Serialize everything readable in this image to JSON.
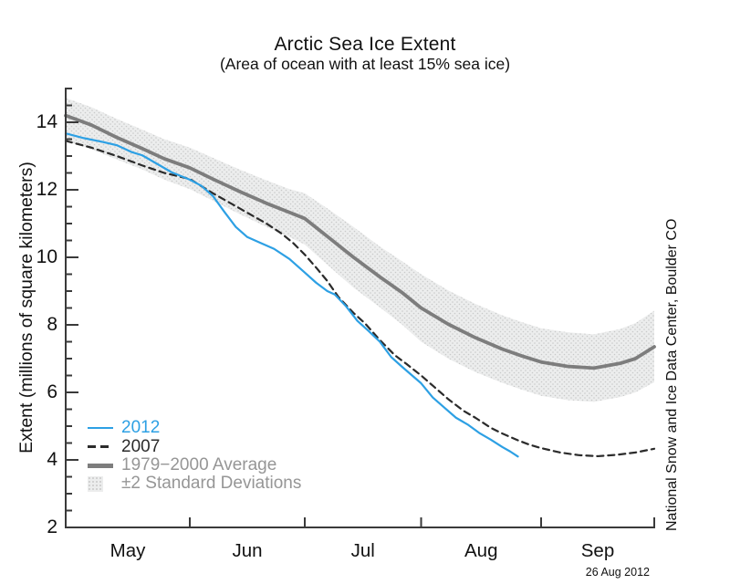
{
  "title": "Arctic Sea Ice Extent",
  "subtitle": "(Area of ocean with at least 15% sea ice)",
  "y_axis_label": "Extent (millions of square kilometers)",
  "watermark": "National Snow and Ice Data Center, Boulder CO",
  "date_label": "26 Aug 2012",
  "colors": {
    "line_2012": "#2da0e4",
    "line_2007": "#2b2b2b",
    "line_avg": "#7d7d7d",
    "band_fill": "#eceded",
    "band_dot": "#c9c9c9",
    "legend_gray": "#969696",
    "axis": "#3a3a3a",
    "text": "#111111"
  },
  "legend": {
    "items": [
      {
        "label": "2012",
        "color": "#2da0e4",
        "swatch": "line-2012"
      },
      {
        "label": "2007",
        "color": "#2b2b2b",
        "swatch": "line-2007"
      },
      {
        "label": "1979−2000 Average",
        "color": "#969696",
        "swatch": "line-avg"
      },
      {
        "label": "±2 Standard Deviations",
        "color": "#969696",
        "swatch": "box-std"
      }
    ]
  },
  "chart_data": {
    "type": "line",
    "title": "Arctic Sea Ice Extent",
    "subtitle": "(Area of ocean with at least 15% sea ice)",
    "xlabel": "",
    "ylabel": "Extent (millions of square kilometers)",
    "x_unit": "days from 28 Apr",
    "x_range_days": [
      0,
      156
    ],
    "ylim": [
      2,
      15
    ],
    "y_major_ticks": [
      2,
      4,
      6,
      8,
      10,
      12,
      14
    ],
    "y_minor_step": 0.5,
    "x_tick_days": [
      34,
      64,
      95,
      126,
      156
    ],
    "x_tick_dates": [
      "Jun 1",
      "Jul 1",
      "Aug 1",
      "Sep 1",
      "Oct 1"
    ],
    "month_labels": [
      "May",
      "Jun",
      "Jul",
      "Aug",
      "Sep"
    ],
    "grid": false,
    "legend_position": "lower-left",
    "band": {
      "name": "±2 Standard Deviations",
      "upper": [
        [
          0,
          14.72
        ],
        [
          7,
          14.45
        ],
        [
          14,
          14.1
        ],
        [
          21,
          13.78
        ],
        [
          27,
          13.5
        ],
        [
          34,
          13.25
        ],
        [
          40,
          12.95
        ],
        [
          47,
          12.6
        ],
        [
          54,
          12.28
        ],
        [
          60,
          12.02
        ],
        [
          64,
          11.9
        ],
        [
          70,
          11.45
        ],
        [
          77,
          10.9
        ],
        [
          84,
          10.32
        ],
        [
          90,
          9.88
        ],
        [
          95,
          9.5
        ],
        [
          102,
          9.02
        ],
        [
          109,
          8.62
        ],
        [
          116,
          8.28
        ],
        [
          121,
          8.08
        ],
        [
          126,
          7.9
        ],
        [
          133,
          7.78
        ],
        [
          140,
          7.72
        ],
        [
          147,
          7.88
        ],
        [
          151,
          8.05
        ],
        [
          156,
          8.42
        ]
      ],
      "lower": [
        [
          0,
          13.45
        ],
        [
          7,
          13.2
        ],
        [
          14,
          12.9
        ],
        [
          21,
          12.6
        ],
        [
          27,
          12.3
        ],
        [
          34,
          12.02
        ],
        [
          40,
          11.68
        ],
        [
          47,
          11.28
        ],
        [
          54,
          10.9
        ],
        [
          60,
          10.6
        ],
        [
          64,
          10.38
        ],
        [
          70,
          9.78
        ],
        [
          77,
          9.1
        ],
        [
          84,
          8.52
        ],
        [
          90,
          8.0
        ],
        [
          95,
          7.5
        ],
        [
          102,
          7.0
        ],
        [
          109,
          6.6
        ],
        [
          116,
          6.28
        ],
        [
          121,
          6.08
        ],
        [
          126,
          5.9
        ],
        [
          133,
          5.77
        ],
        [
          140,
          5.72
        ],
        [
          147,
          5.86
        ],
        [
          151,
          6.0
        ],
        [
          156,
          6.3
        ]
      ]
    },
    "series": [
      {
        "name": "1979−2000 Average",
        "color": "#7d7d7d",
        "width": 3.8,
        "dash": "",
        "points": [
          [
            0,
            14.2
          ],
          [
            7,
            13.92
          ],
          [
            14,
            13.55
          ],
          [
            21,
            13.22
          ],
          [
            27,
            12.92
          ],
          [
            34,
            12.65
          ],
          [
            40,
            12.32
          ],
          [
            47,
            11.95
          ],
          [
            54,
            11.6
          ],
          [
            60,
            11.33
          ],
          [
            64,
            11.15
          ],
          [
            70,
            10.62
          ],
          [
            77,
            10.0
          ],
          [
            84,
            9.42
          ],
          [
            90,
            8.95
          ],
          [
            95,
            8.5
          ],
          [
            102,
            8.02
          ],
          [
            109,
            7.62
          ],
          [
            116,
            7.28
          ],
          [
            121,
            7.08
          ],
          [
            126,
            6.9
          ],
          [
            133,
            6.77
          ],
          [
            140,
            6.72
          ],
          [
            147,
            6.86
          ],
          [
            151,
            7.0
          ],
          [
            156,
            7.35
          ]
        ]
      },
      {
        "name": "2007",
        "color": "#2b2b2b",
        "width": 2.2,
        "dash": "7 5",
        "points": [
          [
            0,
            13.45
          ],
          [
            7,
            13.25
          ],
          [
            14,
            13.0
          ],
          [
            21,
            12.72
          ],
          [
            27,
            12.5
          ],
          [
            34,
            12.32
          ],
          [
            40,
            11.9
          ],
          [
            47,
            11.45
          ],
          [
            54,
            11.0
          ],
          [
            58,
            10.7
          ],
          [
            61,
            10.42
          ],
          [
            64,
            10.08
          ],
          [
            67,
            9.7
          ],
          [
            70,
            9.3
          ],
          [
            73,
            8.82
          ],
          [
            77,
            8.35
          ],
          [
            80,
            8.05
          ],
          [
            84,
            7.55
          ],
          [
            88,
            7.1
          ],
          [
            91,
            6.85
          ],
          [
            95,
            6.5
          ],
          [
            98,
            6.2
          ],
          [
            102,
            5.8
          ],
          [
            106,
            5.45
          ],
          [
            109,
            5.25
          ],
          [
            113,
            4.95
          ],
          [
            116,
            4.78
          ],
          [
            120,
            4.58
          ],
          [
            123,
            4.45
          ],
          [
            126,
            4.35
          ],
          [
            131,
            4.22
          ],
          [
            136,
            4.14
          ],
          [
            141,
            4.11
          ],
          [
            146,
            4.15
          ],
          [
            151,
            4.22
          ],
          [
            156,
            4.33
          ]
        ]
      },
      {
        "name": "2012",
        "color": "#2da0e4",
        "width": 2.2,
        "dash": "",
        "points": [
          [
            0,
            13.67
          ],
          [
            5,
            13.53
          ],
          [
            10,
            13.42
          ],
          [
            14,
            13.32
          ],
          [
            18,
            13.12
          ],
          [
            21,
            13.02
          ],
          [
            25,
            12.77
          ],
          [
            29,
            12.52
          ],
          [
            34,
            12.3
          ],
          [
            37,
            12.12
          ],
          [
            40,
            11.82
          ],
          [
            43,
            11.35
          ],
          [
            46,
            10.9
          ],
          [
            49,
            10.6
          ],
          [
            52,
            10.45
          ],
          [
            56,
            10.25
          ],
          [
            60,
            9.95
          ],
          [
            64,
            9.55
          ],
          [
            67,
            9.25
          ],
          [
            70,
            9.0
          ],
          [
            72,
            8.9
          ],
          [
            75,
            8.55
          ],
          [
            78,
            8.12
          ],
          [
            81,
            7.82
          ],
          [
            84,
            7.5
          ],
          [
            87,
            7.05
          ],
          [
            90,
            6.75
          ],
          [
            95,
            6.27
          ],
          [
            98,
            5.85
          ],
          [
            101,
            5.55
          ],
          [
            104,
            5.25
          ],
          [
            107,
            5.05
          ],
          [
            110,
            4.8
          ],
          [
            113,
            4.6
          ],
          [
            116,
            4.38
          ],
          [
            118,
            4.25
          ],
          [
            120,
            4.1
          ]
        ]
      }
    ]
  }
}
